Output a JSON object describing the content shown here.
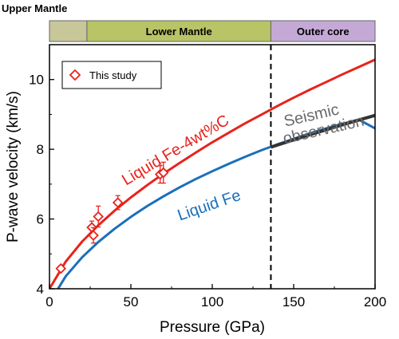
{
  "chart_data": {
    "type": "line",
    "xlabel": "Pressure (GPa)",
    "ylabel": "P-wave velocity (km/s)",
    "xlim": [
      0,
      200
    ],
    "ylim": [
      4,
      11
    ],
    "xticks": [
      0,
      50,
      100,
      150,
      200
    ],
    "yticks": [
      4,
      6,
      8,
      10
    ],
    "grid": false,
    "legend_position": "top-left",
    "regions": [
      {
        "label": "Upper Mantle",
        "x": [
          0,
          23
        ],
        "color": "#c8c79a"
      },
      {
        "label": "Lower Mantle",
        "x": [
          23,
          136
        ],
        "color": "#b8c465"
      },
      {
        "label": "Outer core",
        "x": [
          136,
          200
        ],
        "color": "#c4a9d6"
      }
    ],
    "boundary_x": 136,
    "series": [
      {
        "name": "Liquid Fe-4wt%C",
        "kind": "line",
        "color": "#e8231c",
        "x": [
          0,
          10,
          20,
          30,
          40,
          50,
          60,
          70,
          80,
          90,
          100,
          110,
          120,
          130,
          140,
          150,
          160,
          170,
          180,
          190,
          200
        ],
        "y": [
          4.0,
          4.78,
          5.35,
          5.82,
          6.24,
          6.62,
          6.97,
          7.3,
          7.61,
          7.91,
          8.2,
          8.47,
          8.74,
          8.99,
          9.24,
          9.48,
          9.71,
          9.93,
          10.15,
          10.36,
          10.57
        ]
      },
      {
        "name": "Liquid Fe",
        "kind": "line",
        "color": "#1b6fba",
        "x": [
          0,
          10,
          20,
          30,
          40,
          50,
          60,
          70,
          80,
          90,
          100,
          110,
          120,
          130,
          140,
          150,
          160,
          170,
          180,
          190,
          200
        ],
        "y": [
          3.6,
          4.36,
          4.9,
          5.34,
          5.72,
          6.06,
          6.37,
          6.65,
          6.91,
          7.15,
          7.37,
          7.58,
          7.78,
          7.97,
          8.14,
          8.3,
          8.46,
          8.6,
          8.73,
          8.85,
          8.6
        ]
      },
      {
        "name": "Seismic observation",
        "kind": "line",
        "color": "#333333",
        "x": [
          136,
          150,
          160,
          170,
          180,
          190,
          200
        ],
        "y": [
          8.06,
          8.27,
          8.42,
          8.56,
          8.7,
          8.84,
          8.97
        ]
      },
      {
        "name": "This study",
        "kind": "marker",
        "marker": "diamond",
        "color": "#e8231c",
        "x": [
          7,
          26,
          27,
          30,
          42,
          68,
          70
        ],
        "y": [
          4.58,
          5.76,
          5.53,
          6.07,
          6.47,
          7.28,
          7.33
        ],
        "yerr": [
          0.08,
          0.18,
          0.22,
          0.3,
          0.2,
          0.25,
          0.3
        ]
      }
    ],
    "annotations": [
      {
        "text": "Liquid Fe-4wt%C",
        "color": "#e8231c"
      },
      {
        "text": "Liquid Fe",
        "color": "#1b6fba"
      },
      {
        "text": "Seismic\nobservation",
        "color": "#6a6a6a"
      }
    ],
    "legend": [
      {
        "label": "This study",
        "marker": "diamond",
        "color": "#e8231c"
      }
    ]
  }
}
